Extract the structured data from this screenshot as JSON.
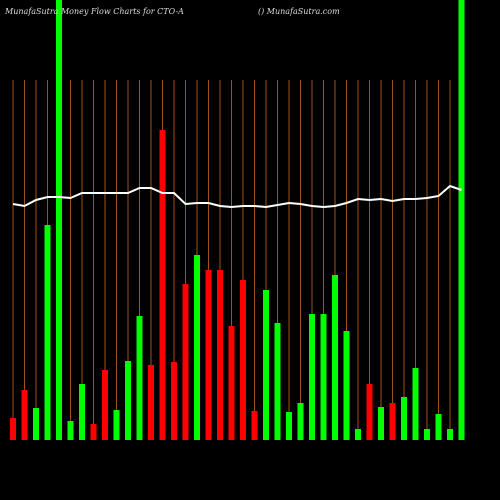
{
  "chart_data": {
    "type": "bar",
    "title": "MunafaSutra  Money Flow  Charts for CTO-A",
    "subtitle": "() MunafaSutra.com",
    "categories": [
      null,
      null,
      null,
      null,
      null,
      null,
      null,
      null,
      null,
      null,
      null,
      null,
      null,
      null,
      null,
      null,
      null,
      null,
      null,
      null,
      null,
      null,
      null,
      null,
      null,
      null,
      null,
      null,
      null,
      null,
      null,
      null,
      null,
      null,
      null,
      null,
      null,
      null,
      null,
      null
    ],
    "values": [
      22,
      50,
      32,
      215,
      440,
      19,
      56,
      16,
      70,
      30,
      79,
      124,
      75,
      310,
      78,
      156,
      185,
      170,
      170,
      114,
      160,
      29,
      150,
      117,
      28,
      37,
      126,
      126,
      165,
      109,
      11,
      56,
      33,
      37,
      43,
      72,
      11,
      26,
      11,
      440
    ],
    "bar_colors": [
      "red",
      "red",
      "lime",
      "lime",
      "lime",
      "lime",
      "lime",
      "red",
      "red",
      "lime",
      "lime",
      "lime",
      "red",
      "red",
      "red",
      "red",
      "lime",
      "red",
      "red",
      "red",
      "red",
      "red",
      "lime",
      "lime",
      "lime",
      "lime",
      "lime",
      "lime",
      "lime",
      "lime",
      "lime",
      "red",
      "lime",
      "red",
      "lime",
      "lime",
      "lime",
      "lime",
      "lime",
      "lime"
    ],
    "line_values": [
      236,
      234,
      240,
      243,
      243,
      242,
      247,
      247,
      247,
      247,
      247,
      252,
      252,
      247,
      247,
      236,
      237,
      237,
      234,
      233,
      234,
      234,
      233,
      235,
      237,
      236,
      234,
      233,
      234,
      237,
      241,
      240,
      241,
      239,
      241,
      241,
      242,
      244,
      254,
      250
    ],
    "line_color": "white",
    "grid": true,
    "grid_color": "#a0521a",
    "ylim": [
      0,
      440
    ]
  }
}
